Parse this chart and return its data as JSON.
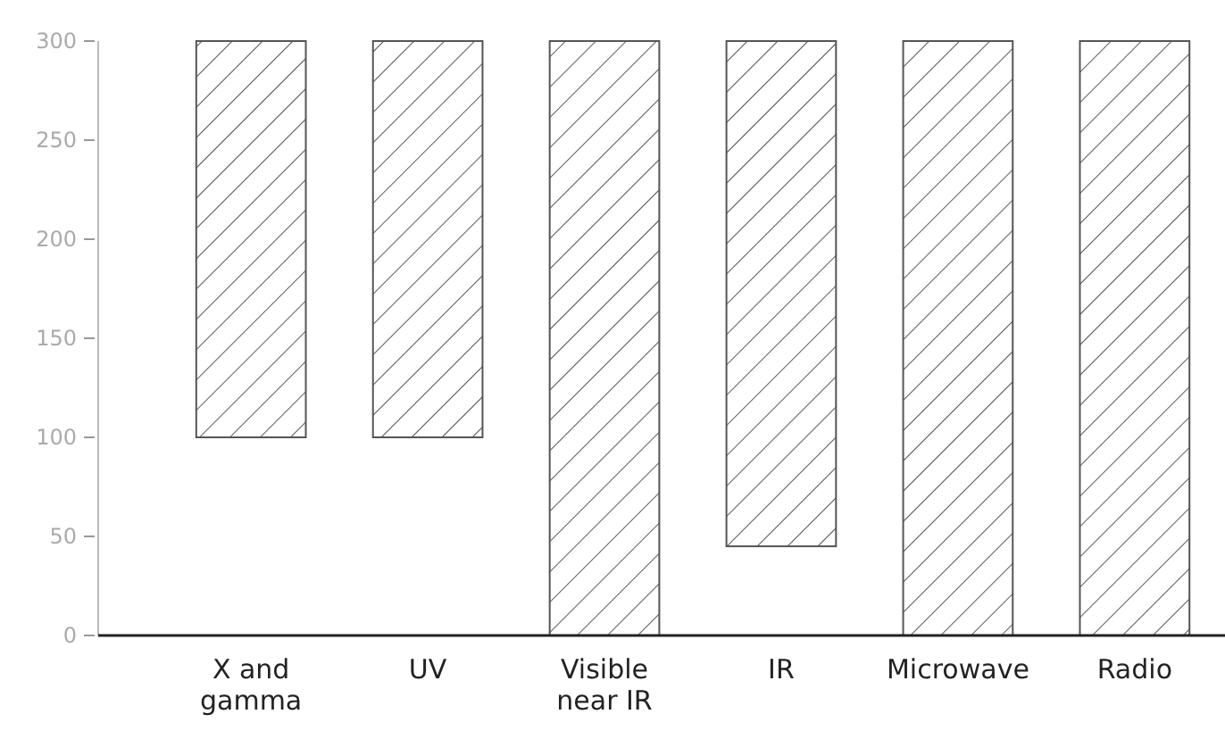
{
  "chart_data": {
    "type": "bar",
    "categories": [
      "X and\ngamma",
      "UV",
      "Visible\nnear IR",
      "IR",
      "Microwave",
      "Radio"
    ],
    "values": [
      200,
      200,
      300,
      255,
      300,
      300
    ],
    "base": [
      100,
      100,
      0,
      45,
      0,
      0
    ],
    "color": "#555555",
    "ylim": [
      0,
      300
    ],
    "yticks": [
      0,
      50,
      100,
      150,
      200,
      250,
      300
    ],
    "grid": false
  }
}
